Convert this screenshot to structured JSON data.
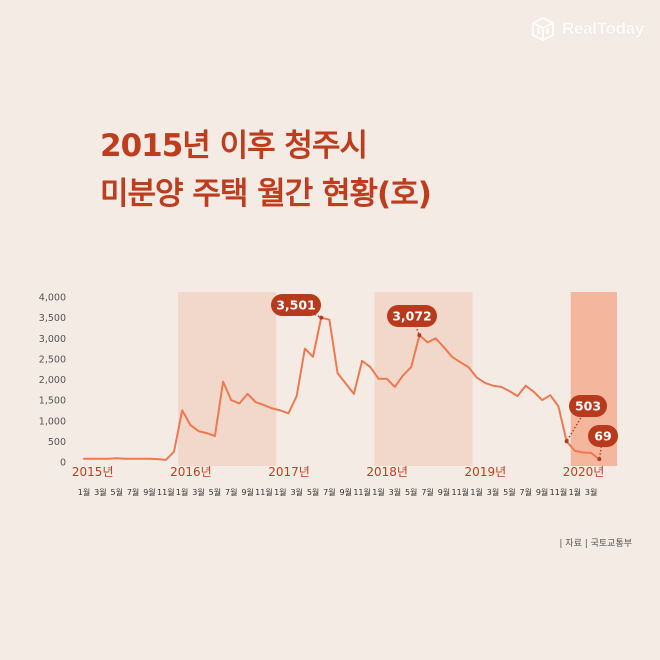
{
  "brand": {
    "name": "RealToday",
    "icon": "cube-logo-icon"
  },
  "title_lines": [
    "2015년 이후 청주시",
    "미분양 주택 월간 현황(호)"
  ],
  "source": "| 자료 | 국토교통부",
  "colors": {
    "title": "#bf3d1f",
    "line": "#f07850",
    "band": "#f2d2c2",
    "band_last": "#f4a586",
    "callout": "#b73a1c",
    "background": "#f3ebe4"
  },
  "chart_data": {
    "type": "line",
    "title": "2015년 이후 청주시 미분양 주택 월간 현황(호)",
    "xlabel": "",
    "ylabel": "",
    "ylim": [
      0,
      4000
    ],
    "yticks": [
      "4,000",
      "3,500",
      "3,000",
      "2,500",
      "2,000",
      "1,500",
      "1,000",
      "500",
      "0"
    ],
    "grid": false,
    "years": [
      "2015년",
      "2016년",
      "2017년",
      "2018년",
      "2019년",
      "2020년"
    ],
    "month_labels": [
      "1월",
      "3월",
      "5월",
      "7월",
      "9월",
      "11월"
    ],
    "month_labels_2020": [
      "1월",
      "3월"
    ],
    "x": [
      "2015-01",
      "2015-02",
      "2015-03",
      "2015-04",
      "2015-05",
      "2015-06",
      "2015-07",
      "2015-08",
      "2015-09",
      "2015-10",
      "2015-11",
      "2015-12",
      "2016-01",
      "2016-02",
      "2016-03",
      "2016-04",
      "2016-05",
      "2016-06",
      "2016-07",
      "2016-08",
      "2016-09",
      "2016-10",
      "2016-11",
      "2016-12",
      "2017-01",
      "2017-02",
      "2017-03",
      "2017-04",
      "2017-05",
      "2017-06",
      "2017-07",
      "2017-08",
      "2017-09",
      "2017-10",
      "2017-11",
      "2017-12",
      "2018-01",
      "2018-02",
      "2018-03",
      "2018-04",
      "2018-05",
      "2018-06",
      "2018-07",
      "2018-08",
      "2018-09",
      "2018-10",
      "2018-11",
      "2018-12",
      "2019-01",
      "2019-02",
      "2019-03",
      "2019-04",
      "2019-05",
      "2019-06",
      "2019-07",
      "2019-08",
      "2019-09",
      "2019-10",
      "2019-11",
      "2019-12",
      "2020-01",
      "2020-02",
      "2020-03",
      "2020-04"
    ],
    "values": [
      80,
      80,
      80,
      80,
      90,
      80,
      80,
      80,
      80,
      70,
      50,
      250,
      1250,
      900,
      750,
      700,
      630,
      1950,
      1500,
      1420,
      1650,
      1450,
      1380,
      1300,
      1250,
      1180,
      1600,
      2750,
      2550,
      3501,
      3450,
      2150,
      1900,
      1650,
      2450,
      2300,
      2020,
      2020,
      1820,
      2100,
      2300,
      3072,
      2900,
      3000,
      2780,
      2550,
      2420,
      2300,
      2050,
      1920,
      1850,
      1820,
      1720,
      1600,
      1850,
      1700,
      1500,
      1620,
      1350,
      503,
      270,
      230,
      220,
      69
    ],
    "callouts": [
      {
        "x": "2017-06",
        "value": 3501,
        "label": "3,501"
      },
      {
        "x": "2018-06",
        "value": 3072,
        "label": "3,072"
      },
      {
        "x": "2019-12",
        "value": 503,
        "label": "503"
      },
      {
        "x": "2020-04",
        "value": 69,
        "label": "69"
      }
    ]
  }
}
